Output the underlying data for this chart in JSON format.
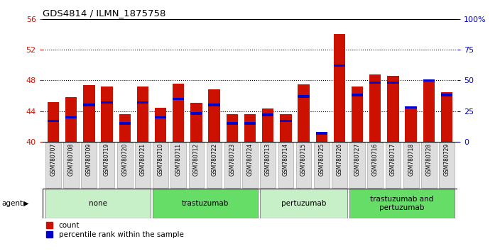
{
  "title": "GDS4814 / ILMN_1875758",
  "samples": [
    "GSM780707",
    "GSM780708",
    "GSM780709",
    "GSM780719",
    "GSM780720",
    "GSM780721",
    "GSM780710",
    "GSM780711",
    "GSM780712",
    "GSM780722",
    "GSM780723",
    "GSM780724",
    "GSM780713",
    "GSM780714",
    "GSM780715",
    "GSM780725",
    "GSM780726",
    "GSM780727",
    "GSM780716",
    "GSM780717",
    "GSM780718",
    "GSM780728",
    "GSM780729"
  ],
  "count_values": [
    45.2,
    45.8,
    47.4,
    47.2,
    43.6,
    47.2,
    44.4,
    47.6,
    45.1,
    46.8,
    43.6,
    43.6,
    44.3,
    43.6,
    47.5,
    40.9,
    54.0,
    47.2,
    48.8,
    48.6,
    44.5,
    48.1,
    46.5
  ],
  "percentile_values": [
    17,
    20,
    30,
    32,
    15,
    32,
    20,
    35,
    23,
    30,
    15,
    15,
    22,
    17,
    37,
    7,
    62,
    38,
    48,
    48,
    28,
    50,
    38
  ],
  "groups": [
    {
      "label": "none",
      "start": 0,
      "end": 5,
      "color": "#c8f0c8"
    },
    {
      "label": "trastuzumab",
      "start": 6,
      "end": 11,
      "color": "#66dd66"
    },
    {
      "label": "pertuzumab",
      "start": 12,
      "end": 16,
      "color": "#c8f0c8"
    },
    {
      "label": "trastuzumab and\npertuzumab",
      "start": 17,
      "end": 22,
      "color": "#66dd66"
    }
  ],
  "ylim_left": [
    40,
    56
  ],
  "yticks_left": [
    40,
    44,
    48,
    52,
    56
  ],
  "ylim_right": [
    0,
    100
  ],
  "yticks_right": [
    0,
    25,
    50,
    75,
    100
  ],
  "ytick_right_labels": [
    "0",
    "25",
    "50",
    "75",
    "100%"
  ],
  "bar_color": "#cc1100",
  "percentile_color": "#0000cc",
  "bg_color": "#ffffff",
  "left_axis_color": "#cc1100",
  "right_axis_color": "#0000cc",
  "gridline_yticks": [
    44,
    48,
    52
  ],
  "bar_width": 0.65
}
